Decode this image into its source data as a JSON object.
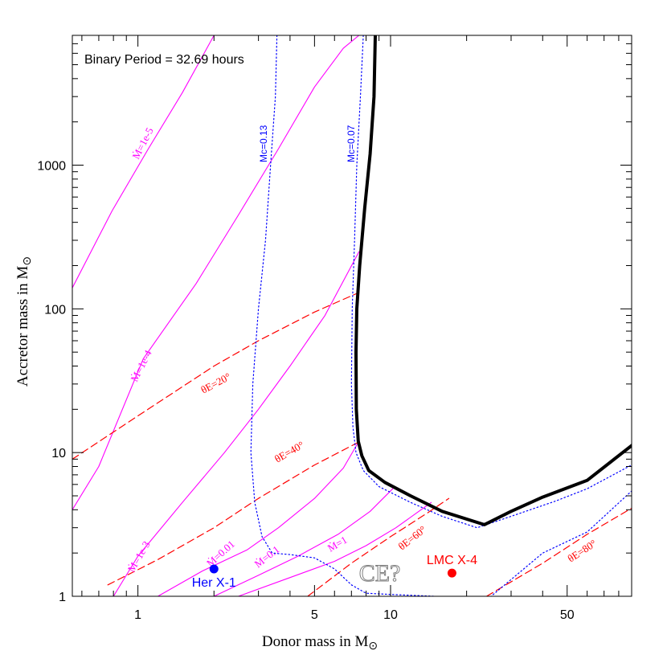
{
  "chart_data": {
    "type": "line",
    "title": "",
    "annotation": "Binary Period = 32.69 hours",
    "xlabel_main": "Donor mass in M",
    "ylabel_main": "Accretor mass in M",
    "solar_symbol": "⊙",
    "xscale": "log",
    "yscale": "log",
    "xlim": [
      0.55,
      90
    ],
    "ylim": [
      1,
      8000
    ],
    "grid": false,
    "x_ticks": [
      {
        "value": 1,
        "label": "1"
      },
      {
        "value": 5,
        "label": "5"
      },
      {
        "value": 10,
        "label": "10"
      },
      {
        "value": 50,
        "label": "50"
      }
    ],
    "y_ticks": [
      {
        "value": 1,
        "label": "1"
      },
      {
        "value": 10,
        "label": "10"
      },
      {
        "value": 100,
        "label": "100"
      },
      {
        "value": 1000,
        "label": "1000"
      }
    ],
    "colors": {
      "mdot": "#ff00ff",
      "theta": "#ff0000",
      "mc": "#0000ff",
      "boundary": "#000000",
      "ce": "#7f7f7f"
    },
    "series": [
      {
        "label": "Ṁ=1e-5",
        "style": "mdot",
        "x": [
          0.55,
          0.79,
          1.1,
          1.5,
          2.0,
          2.7,
          3.6
        ],
        "y": [
          140,
          480,
          1300,
          3200,
          8000,
          8000,
          8000
        ]
      },
      {
        "label": "Ṁ=1e-4",
        "style": "mdot",
        "x": [
          0.55,
          0.7,
          1.05,
          1.7,
          2.5,
          3.6,
          5.0,
          6.5,
          7.5
        ],
        "y": [
          4,
          8,
          45,
          150,
          450,
          1300,
          3500,
          6500,
          8000
        ]
      },
      {
        "label": "Ṁ=1e-3",
        "style": "mdot",
        "x": [
          0.8,
          1.0,
          1.5,
          2.2,
          3.0,
          4.0,
          5.5,
          7.5
        ],
        "y": [
          1,
          1.9,
          4.5,
          10,
          20,
          40,
          90,
          250
        ]
      },
      {
        "label": "Ṁ=0.01",
        "style": "mdot",
        "x": [
          1.2,
          1.8,
          2.7,
          3.6,
          5.0,
          6.5,
          7.5
        ],
        "y": [
          1,
          1.5,
          2.1,
          3.0,
          4.8,
          7.8,
          12
        ]
      },
      {
        "label": "Ṁ=0.1",
        "style": "mdot",
        "x": [
          2.0,
          3.0,
          4.3,
          6.2,
          8.3,
          10.2
        ],
        "y": [
          1,
          1.4,
          1.9,
          2.7,
          3.9,
          5.6
        ]
      },
      {
        "label": "Ṁ=1",
        "style": "mdot",
        "x": [
          2.5,
          4.0,
          6.0,
          8.0,
          10.5,
          14.5
        ],
        "y": [
          1,
          1.35,
          1.75,
          2.25,
          3.0,
          4.5
        ]
      },
      {
        "label": "θE=20°",
        "style": "theta",
        "x": [
          0.55,
          1.0,
          2.0,
          3.0,
          5.0,
          7.5
        ],
        "y": [
          9,
          18,
          40,
          60,
          95,
          130
        ]
      },
      {
        "label": "θE=40°",
        "style": "theta",
        "x": [
          0.76,
          1.2,
          2.0,
          3.0,
          5.0,
          7.6
        ],
        "y": [
          1.2,
          1.8,
          3.0,
          4.8,
          8.2,
          12.0
        ]
      },
      {
        "label": "θE=60°",
        "style": "theta",
        "x": [
          4.7,
          7.0,
          10.0,
          14.0,
          17.0
        ],
        "y": [
          1,
          1.7,
          2.6,
          3.8,
          4.8
        ]
      },
      {
        "label": "θE=80°",
        "style": "theta",
        "x": [
          24,
          40,
          60,
          90
        ],
        "y": [
          1,
          1.7,
          2.7,
          4.1
        ]
      },
      {
        "label": "Mc=0.13",
        "style": "mc",
        "x": [
          3.55,
          3.5,
          3.35,
          3.2,
          3.0,
          2.85,
          2.8,
          2.9,
          3.1,
          3.4,
          4.0,
          5.0,
          6.0,
          7.0,
          8.0,
          10.0,
          15.0,
          20.0,
          25.0,
          40.0,
          60.0,
          90.0
        ],
        "y": [
          8000,
          3000,
          1000,
          300,
          100,
          30,
          10,
          4.5,
          2.6,
          2.0,
          1.95,
          1.85,
          1.55,
          1.2,
          1.05,
          1.03,
          1.0,
          0.98,
          1.0,
          2.0,
          2.8,
          5.4
        ]
      },
      {
        "label": "Mc=0.07",
        "style": "mc",
        "x": [
          7.8,
          7.6,
          7.35,
          7.2,
          7.05,
          7.0,
          7.1,
          7.3,
          7.8,
          9.0,
          12.0,
          16.0,
          22.0,
          30.0,
          45.0,
          60.0,
          90.0
        ],
        "y": [
          8000,
          3000,
          1000,
          300,
          100,
          30,
          15,
          10,
          7.5,
          5.8,
          4.5,
          3.6,
          3.0,
          3.6,
          4.6,
          5.6,
          8.2
        ]
      },
      {
        "label": "",
        "style": "boundary",
        "x": [
          8.7,
          8.6,
          8.3,
          7.9,
          7.55,
          7.35,
          7.3,
          7.32,
          7.45,
          7.7,
          8.2,
          9.5,
          12.0,
          16.0,
          23.5,
          30.0,
          40.0,
          60.0,
          90.0
        ],
        "y": [
          8000,
          3000,
          1200,
          500,
          200,
          100,
          50,
          20,
          12,
          9.5,
          7.5,
          6.2,
          5.0,
          3.9,
          3.15,
          3.9,
          4.9,
          6.4,
          11.2
        ]
      }
    ],
    "points": [
      {
        "label": "Her X-1",
        "x": 2.0,
        "y": 1.55,
        "color": "#0000ff"
      },
      {
        "label": "LMC X-4",
        "x": 17.5,
        "y": 1.45,
        "color": "#ff0000"
      }
    ],
    "region_label": {
      "text": "CE?",
      "x": 7.5,
      "y": 1.45
    }
  }
}
